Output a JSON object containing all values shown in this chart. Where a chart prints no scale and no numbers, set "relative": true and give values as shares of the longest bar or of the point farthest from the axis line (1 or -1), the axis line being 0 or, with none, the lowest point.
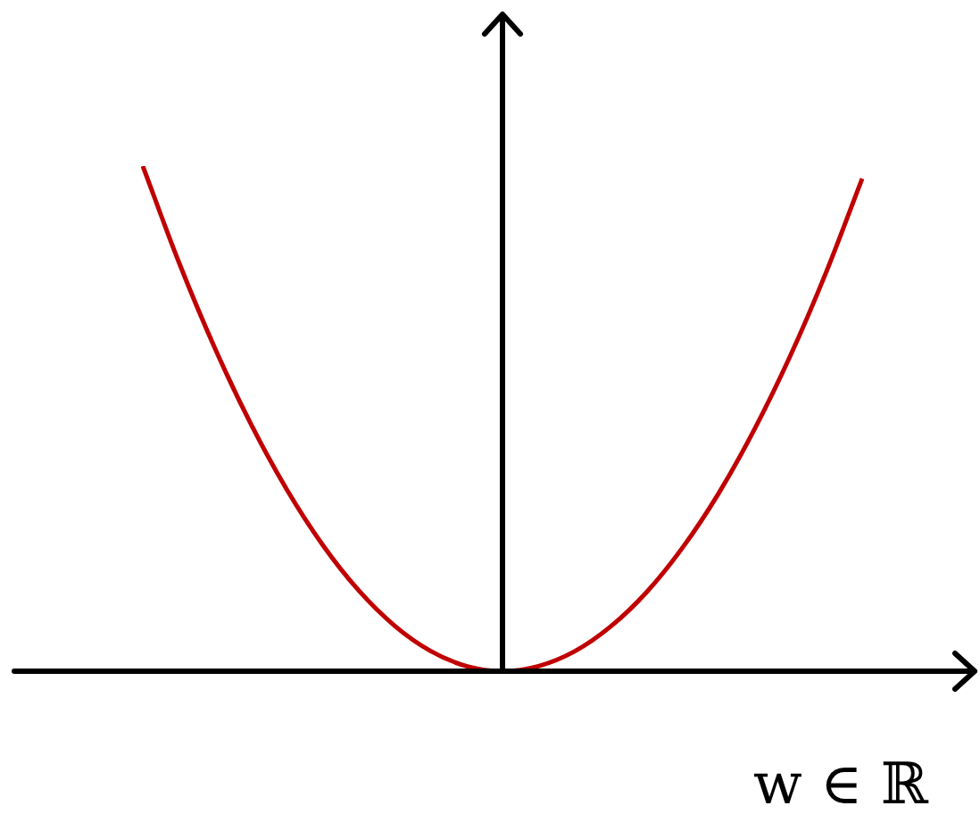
{
  "chart_data": {
    "type": "line",
    "relative": true,
    "xlabel": "w ∈ ℝ",
    "categories": [
      null,
      null,
      null,
      null,
      null,
      null,
      null,
      null,
      null,
      null,
      null,
      null,
      null,
      null,
      null,
      null,
      null,
      null,
      null,
      null,
      null
    ],
    "series": [
      {
        "color": "#c00000",
        "values": [
          1,
          0.81,
          0.64,
          0.49,
          0.36,
          0.25,
          0.16,
          0.09,
          0.04,
          0.01,
          0,
          0.01,
          0.039,
          0.088,
          0.156,
          0.244,
          0.351,
          0.478,
          0.624,
          0.79,
          0.975
        ]
      }
    ],
    "marker": "none",
    "legend": false
  }
}
